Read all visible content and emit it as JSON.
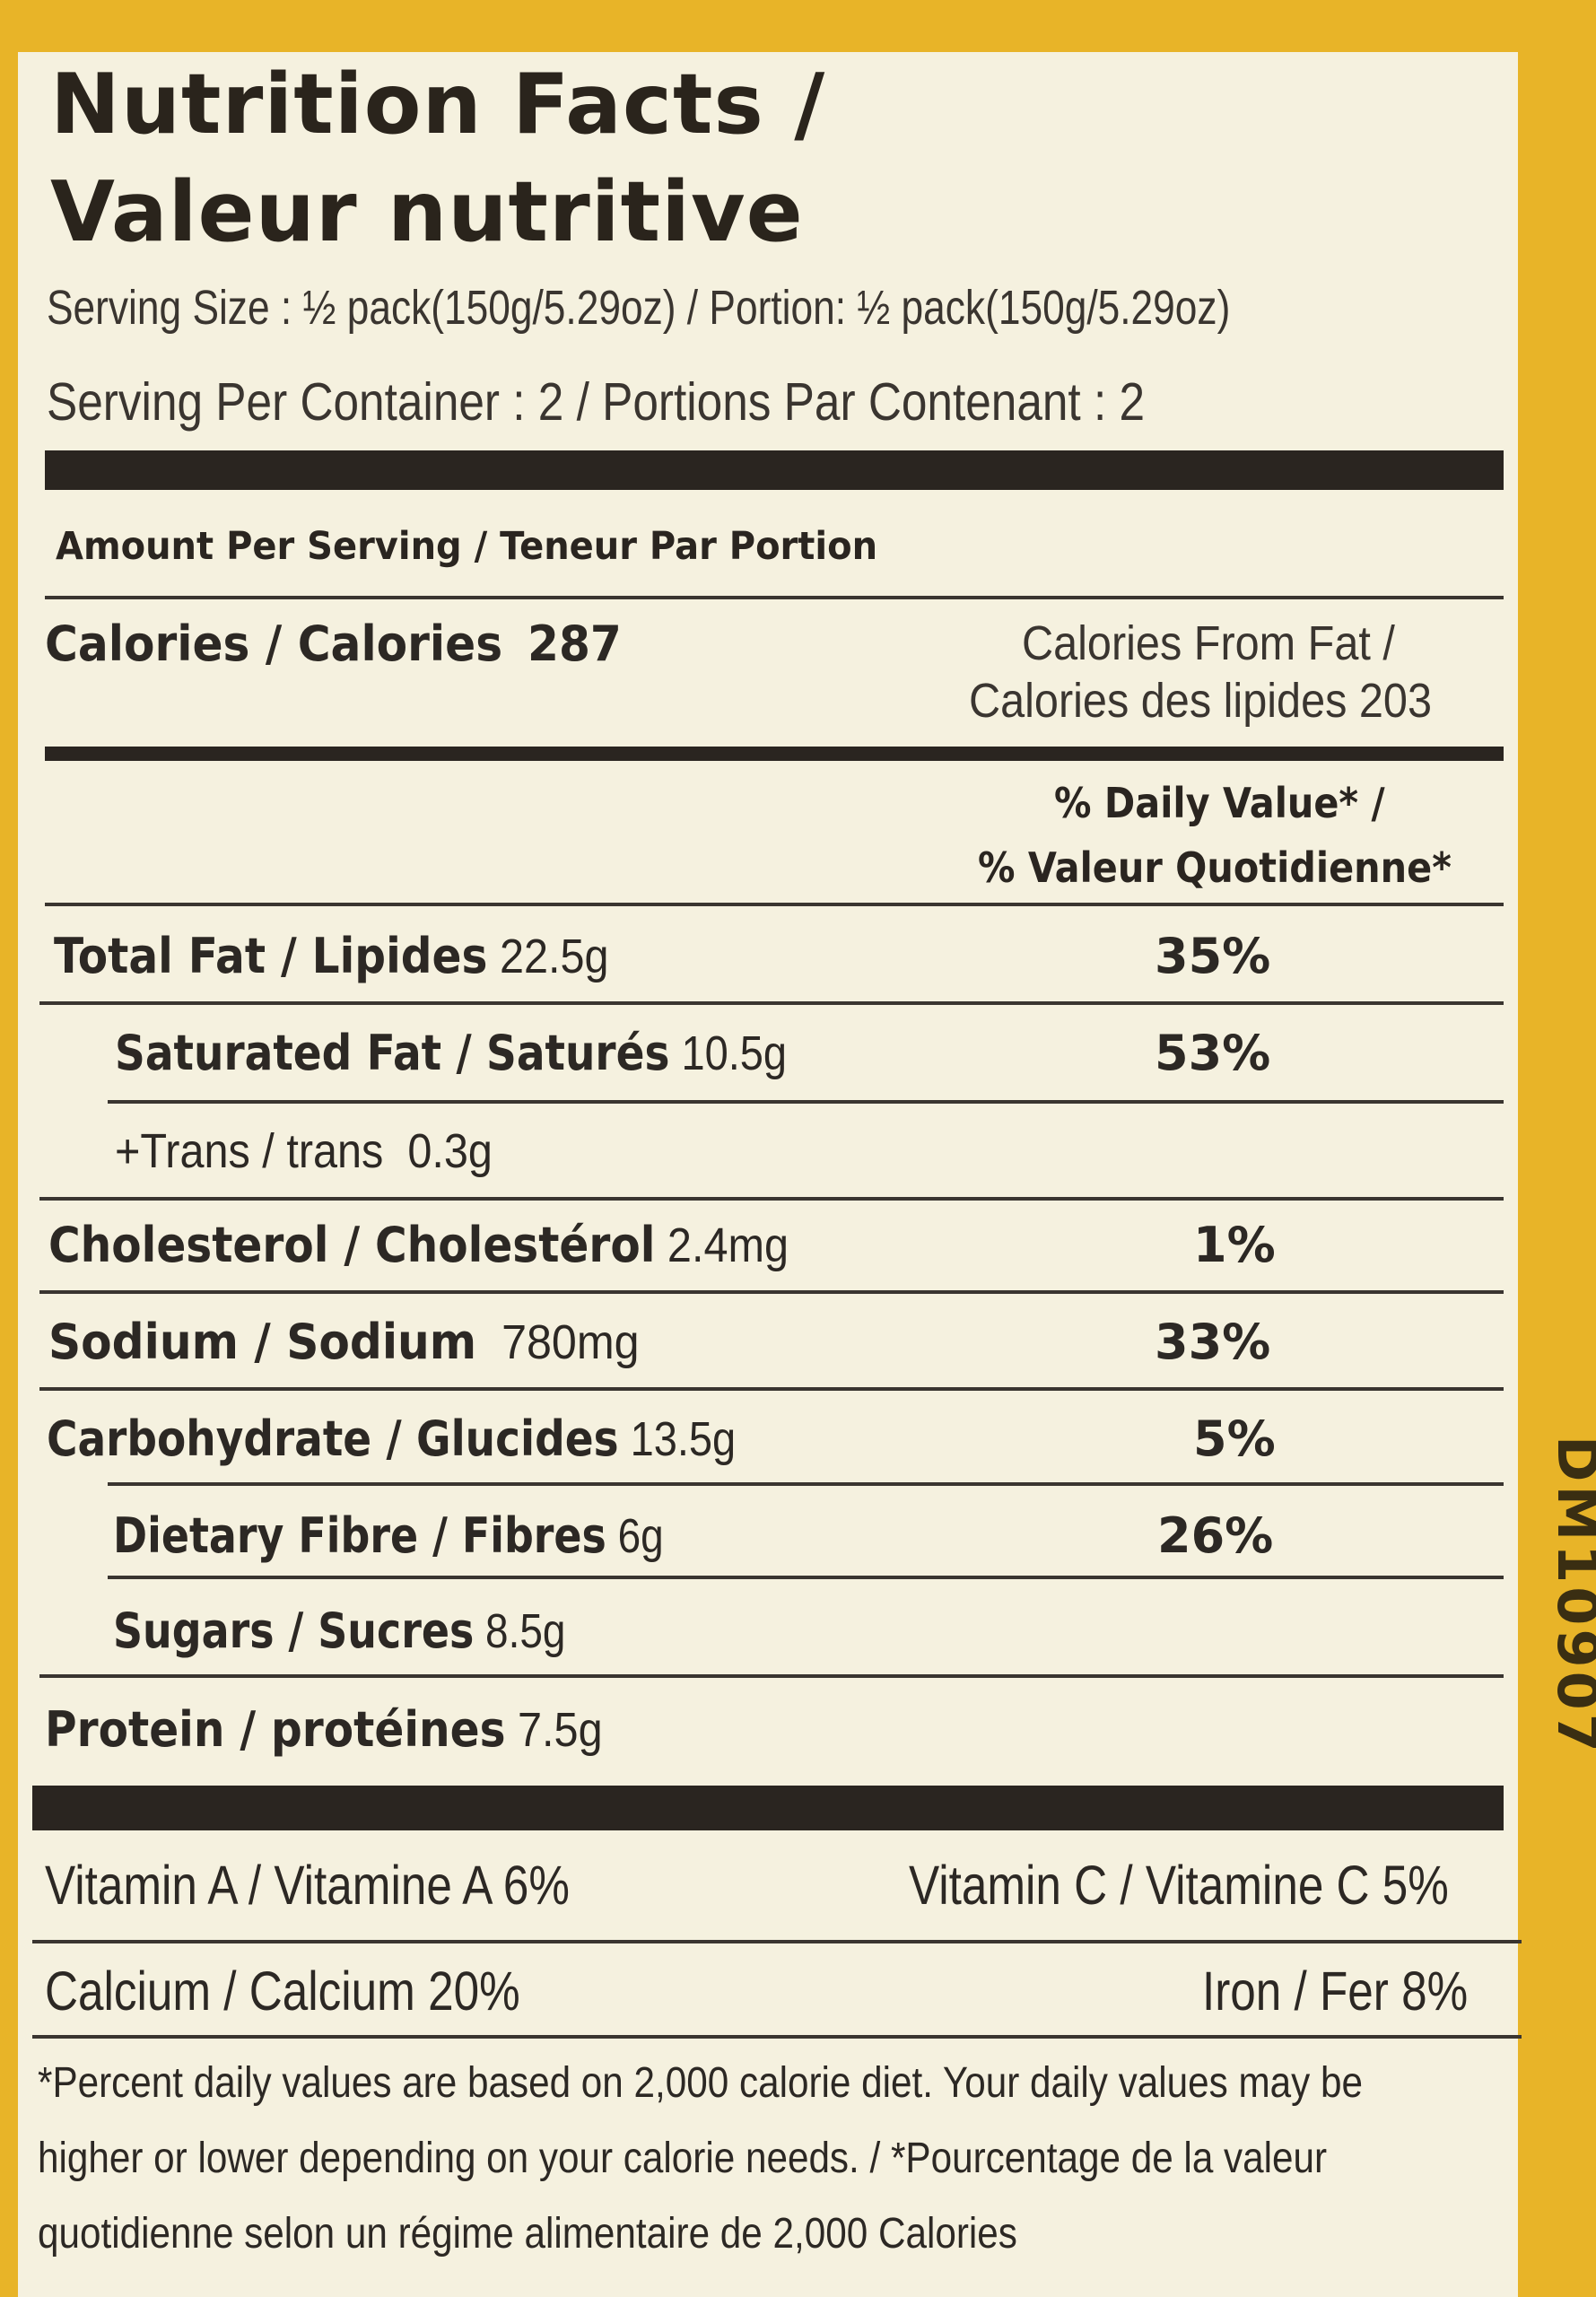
{
  "title_line1": "Nutrition Facts /",
  "title_line2": "Valeur nutritive",
  "serving_size": "Serving Size : ½ pack(150g/5.29oz) / Portion: ½ pack(150g/5.29oz)",
  "servings_per_container": "Serving Per Container : 2 / Portions Par Contenant : 2",
  "amount_per_serving": "Amount Per Serving / Teneur Par Portion",
  "calories": {
    "label": "Calories / Calories",
    "value": "287",
    "from_fat_line1": "Calories From Fat /",
    "from_fat_line2": "Calories des lipides 203"
  },
  "daily_value_header_line1": "% Daily Value* /",
  "daily_value_header_line2": "% Valeur Quotidienne*",
  "nutrients": [
    {
      "label": "Total Fat / Lipides",
      "amount": "22.5g",
      "dv": "35%"
    },
    {
      "label": "Saturated Fat / Saturés",
      "amount": "10.5g",
      "dv": "53%"
    },
    {
      "label": "+Trans / trans",
      "amount": "0.3g",
      "dv": ""
    },
    {
      "label": "Cholesterol / Cholestérol",
      "amount": "2.4mg",
      "dv": "1%"
    },
    {
      "label": "Sodium / Sodium",
      "amount": "780mg",
      "dv": "33%"
    },
    {
      "label": "Carbohydrate / Glucides",
      "amount": "13.5g",
      "dv": "5%"
    },
    {
      "label": "Dietary Fibre / Fibres",
      "amount": "6g",
      "dv": "26%"
    },
    {
      "label": "Sugars / Sucres",
      "amount": "8.5g",
      "dv": ""
    },
    {
      "label": "Protein / protéines",
      "amount": "7.5g",
      "dv": ""
    }
  ],
  "vitamins": {
    "vitamin_a": "Vitamin A / Vitamine A   6%",
    "vitamin_c": "Vitamin C / Vitamine C  5%",
    "calcium": "Calcium / Calcium  20%",
    "iron": "Iron / Fer 8%"
  },
  "footnote": [
    "*Percent daily values are based on 2,000 calorie diet. Your daily values may be",
    "higher or lower depending on your calorie needs. / *Pourcentage de la valeur",
    "quotidienne selon un régime alimentaire de 2,000 Calories"
  ],
  "side_code": "DM10907",
  "colors": {
    "package": "#e8b428",
    "panel": "#f5f1df",
    "ink": "#2a2520"
  }
}
